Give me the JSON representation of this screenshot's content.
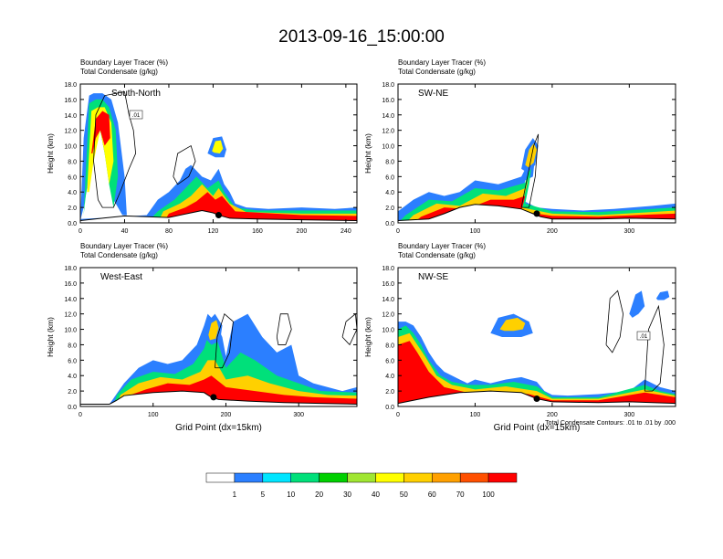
{
  "title": "2013-09-16_15:00:00",
  "colors": {
    "levels": [
      "#ffffff",
      "#2b7fff",
      "#00e5ff",
      "#00e07a",
      "#00d000",
      "#a0e632",
      "#ffff00",
      "#ffd000",
      "#ffa000",
      "#ff5000",
      "#ff0000"
    ],
    "contour": "#000000",
    "marker": "#000000"
  },
  "colorbar": {
    "labels": [
      "1",
      "5",
      "10",
      "20",
      "30",
      "40",
      "50",
      "60",
      "70",
      "100"
    ]
  },
  "chart_data": [
    {
      "type": "cross-section",
      "label": "South-North",
      "line1": "Boundary Layer Tracer   (%)",
      "line2": "Total Condensate   (g/kg)",
      "ylabel": "Height (km)",
      "xlabel": "",
      "xlim": [
        0,
        250
      ],
      "ylim": [
        0,
        18
      ],
      "xticks": [
        "0",
        "40",
        "80",
        "120",
        "160",
        "200",
        "240"
      ],
      "yticks": [
        "0.0",
        "2.0",
        "4.0",
        "6.0",
        "8.0",
        "10.0",
        "12.0",
        "14.0",
        "16.0",
        "18.0"
      ],
      "contour_label": ".01",
      "marker_x": 125,
      "terrain": [
        [
          0,
          0.3
        ],
        [
          20,
          0.6
        ],
        [
          40,
          0.9
        ],
        [
          60,
          0.8
        ],
        [
          80,
          0.7
        ],
        [
          90,
          1.0
        ],
        [
          100,
          1.3
        ],
        [
          110,
          1.6
        ],
        [
          120,
          1.3
        ],
        [
          125,
          1.0
        ],
        [
          135,
          0.6
        ],
        [
          160,
          0.5
        ],
        [
          200,
          0.4
        ],
        [
          250,
          0.3
        ]
      ]
    },
    {
      "type": "cross-section",
      "label": "SW-NE",
      "line1": "Boundary Layer Tracer   (%)",
      "line2": "Total Condensate   (g/kg)",
      "ylabel": "Height (km)",
      "xlabel": "",
      "xlim": [
        0,
        360
      ],
      "ylim": [
        0,
        18
      ],
      "xticks": [
        "0",
        "100",
        "200",
        "300"
      ],
      "yticks": [
        "0.0",
        "2.0",
        "4.0",
        "6.0",
        "8.0",
        "10.0",
        "12.0",
        "14.0",
        "16.0",
        "18.0"
      ],
      "contour_label": "",
      "marker_x": 180,
      "terrain": [
        [
          0,
          0.3
        ],
        [
          40,
          0.5
        ],
        [
          60,
          1.2
        ],
        [
          80,
          2.0
        ],
        [
          100,
          2.4
        ],
        [
          130,
          2.2
        ],
        [
          160,
          1.8
        ],
        [
          175,
          1.2
        ],
        [
          185,
          0.8
        ],
        [
          200,
          0.5
        ],
        [
          260,
          0.5
        ],
        [
          300,
          0.6
        ],
        [
          360,
          0.5
        ]
      ]
    },
    {
      "type": "cross-section",
      "label": "West-East",
      "line1": "Boundary Layer Tracer   (%)",
      "line2": "Total Condensate   (g/kg)",
      "ylabel": "Height (km)",
      "xlabel": "Grid Point (dx=15km)",
      "xlim": [
        0,
        380
      ],
      "ylim": [
        0,
        18
      ],
      "xticks": [
        "0",
        "100",
        "200",
        "300"
      ],
      "yticks": [
        "0.0",
        "2.0",
        "4.0",
        "6.0",
        "8.0",
        "10.0",
        "12.0",
        "14.0",
        "16.0",
        "18.0"
      ],
      "contour_label": "",
      "marker_x": 183,
      "terrain": [
        [
          0,
          0.3
        ],
        [
          40,
          0.3
        ],
        [
          50,
          0.8
        ],
        [
          60,
          1.4
        ],
        [
          100,
          1.8
        ],
        [
          140,
          2.0
        ],
        [
          170,
          1.8
        ],
        [
          180,
          1.2
        ],
        [
          190,
          0.9
        ],
        [
          230,
          0.7
        ],
        [
          280,
          0.5
        ],
        [
          330,
          0.4
        ],
        [
          380,
          0.3
        ]
      ]
    },
    {
      "type": "cross-section",
      "label": "NW-SE",
      "line1": "Boundary Layer Tracer   (%)",
      "line2": "Total Condensate   (g/kg)",
      "ylabel": "Height (km)",
      "xlabel": "Grid Point (dx=15km)",
      "xlim": [
        0,
        360
      ],
      "ylim": [
        0,
        18
      ],
      "xticks": [
        "0",
        "100",
        "200",
        "300"
      ],
      "yticks": [
        "0.0",
        "2.0",
        "4.0",
        "6.0",
        "8.0",
        "10.0",
        "12.0",
        "14.0",
        "16.0",
        "18.0"
      ],
      "contour_label": ".01",
      "contour_info": "Total Condensate Contours: .01 to .01 by .000",
      "marker_x": 180,
      "terrain": [
        [
          0,
          0.4
        ],
        [
          40,
          1.2
        ],
        [
          80,
          1.8
        ],
        [
          120,
          2.0
        ],
        [
          160,
          1.8
        ],
        [
          180,
          1.0
        ],
        [
          200,
          0.6
        ],
        [
          260,
          0.5
        ],
        [
          300,
          0.6
        ],
        [
          360,
          0.4
        ]
      ]
    }
  ]
}
